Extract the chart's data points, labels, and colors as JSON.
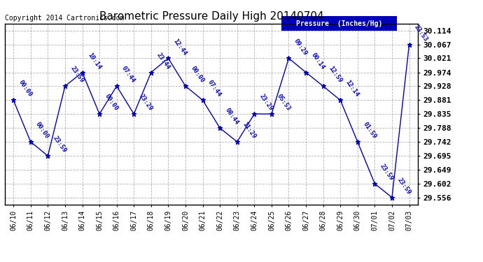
{
  "title": "Barometric Pressure Daily High 20140704",
  "copyright": "Copyright 2014 Cartronics.com",
  "legend_label": "Pressure  (Inches/Hg)",
  "x_labels": [
    "06/10",
    "06/11",
    "06/12",
    "06/13",
    "06/14",
    "06/15",
    "06/16",
    "06/17",
    "06/18",
    "06/19",
    "06/20",
    "06/21",
    "06/22",
    "06/23",
    "06/24",
    "06/25",
    "06/26",
    "06/27",
    "06/28",
    "06/29",
    "06/30",
    "07/01",
    "07/02",
    "07/03"
  ],
  "y_values": [
    29.881,
    29.742,
    29.695,
    29.928,
    29.974,
    29.835,
    29.928,
    29.835,
    29.974,
    30.021,
    29.928,
    29.881,
    29.788,
    29.742,
    29.835,
    29.835,
    30.021,
    29.974,
    29.928,
    29.881,
    29.742,
    29.602,
    29.556,
    30.067
  ],
  "time_labels": [
    "00:00",
    "00:00",
    "23:59",
    "23:59",
    "10:14",
    "00:00",
    "07:44",
    "23:29",
    "23:44",
    "12:44",
    "00:00",
    "07:44",
    "08:44",
    "11:29",
    "23:29",
    "05:53",
    "09:29",
    "00:14",
    "12:59",
    "12:14",
    "01:59",
    "23:59",
    "23:59",
    "23:53"
  ],
  "ytick_values": [
    29.556,
    29.602,
    29.649,
    29.695,
    29.742,
    29.788,
    29.835,
    29.881,
    29.928,
    29.974,
    30.021,
    30.067,
    30.114
  ],
  "ylim_min": 29.533,
  "ylim_max": 30.137,
  "line_color": "#0000bb",
  "bg_color": "#ffffff",
  "grid_color": "#aaaaaa",
  "title_color": "#000000",
  "copyright_color": "#000000",
  "legend_bg": "#0000bb",
  "legend_fg": "#ffffff"
}
